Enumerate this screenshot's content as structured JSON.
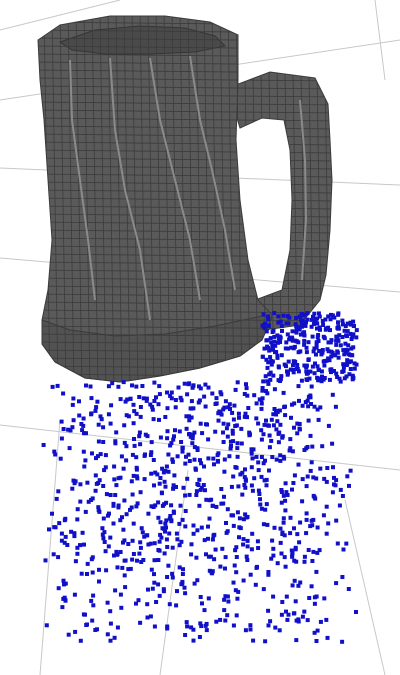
{
  "scene": {
    "background": "#ffffff",
    "grid_color": "#c8c8c8",
    "mesh_color": "#5a5a5a",
    "mesh_edge_color": "#3c3c3c",
    "mesh_highlight": "#8a8a8a",
    "points_color": "#1010c8",
    "objects": [
      {
        "name": "voxel-mug",
        "kind": "voxel-mesh"
      },
      {
        "name": "point-cloud",
        "kind": "points"
      }
    ]
  }
}
